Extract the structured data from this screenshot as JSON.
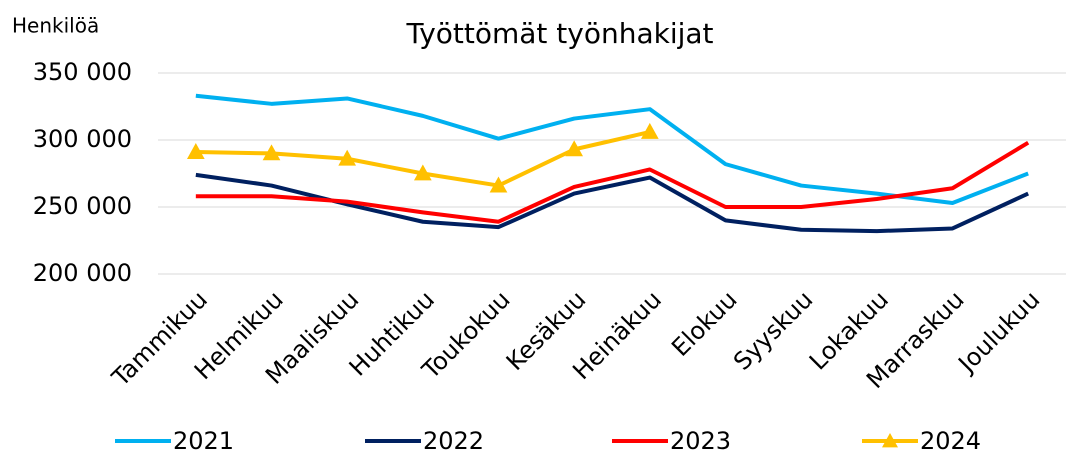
{
  "chart_data": {
    "type": "line",
    "title": "Työttömät työnhakijat",
    "y_label": "Henkilöä",
    "categories": [
      "Tammikuu",
      "Helmikuu",
      "Maaliskuu",
      "Huhtikuu",
      "Toukokuu",
      "Kesäkuu",
      "Heinäkuu",
      "Elokuu",
      "Syyskuu",
      "Lokakuu",
      "Marraskuu",
      "Joulukuu"
    ],
    "series": [
      {
        "name": "2021",
        "color": "#00b0f0",
        "marker": false,
        "values": [
          333000,
          327000,
          331000,
          318000,
          301000,
          316000,
          323000,
          282000,
          266000,
          260000,
          253000,
          275000
        ]
      },
      {
        "name": "2022",
        "color": "#002060",
        "marker": false,
        "values": [
          274000,
          266000,
          252000,
          239000,
          235000,
          260000,
          272000,
          240000,
          233000,
          232000,
          234000,
          260000
        ]
      },
      {
        "name": "2023",
        "color": "#ff0000",
        "marker": false,
        "values": [
          258000,
          258000,
          254000,
          246000,
          239000,
          265000,
          278000,
          250000,
          250000,
          256000,
          264000,
          298000
        ]
      },
      {
        "name": "2024",
        "color": "#ffc000",
        "marker": true,
        "values": [
          291000,
          290000,
          286000,
          275000,
          266000,
          293000,
          306000,
          null,
          null,
          null,
          null,
          null
        ]
      }
    ],
    "ylim": [
      200000,
      350000
    ],
    "yticks": [
      {
        "value": 200000,
        "label": "200 000"
      },
      {
        "value": 250000,
        "label": "250 000"
      },
      {
        "value": 300000,
        "label": "300 000"
      },
      {
        "value": 350000,
        "label": "350 000"
      }
    ],
    "grid": true,
    "legend": "bottom"
  }
}
